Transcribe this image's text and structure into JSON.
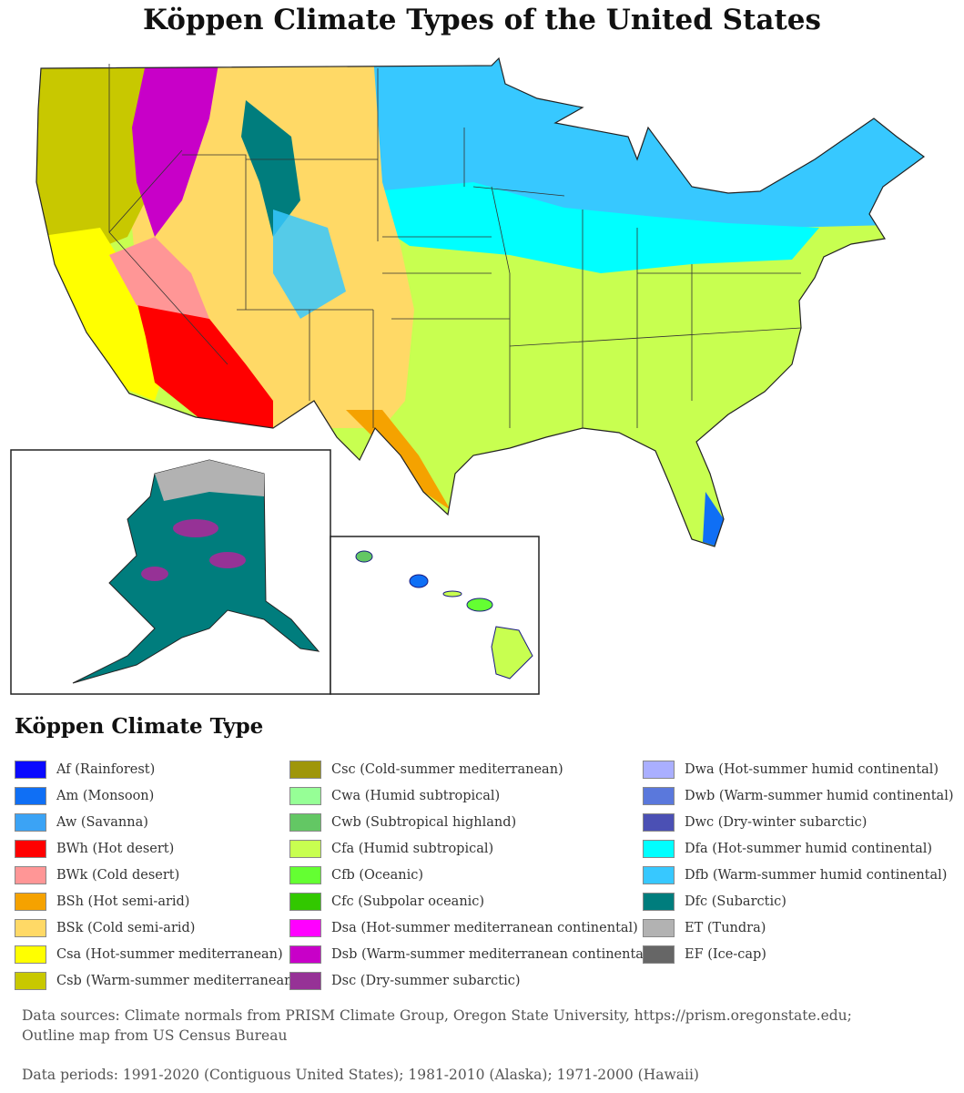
{
  "title": "Köppen Climate Types of the United States",
  "legend": {
    "title": "Köppen Climate Type",
    "columns": [
      [
        {
          "label": "Af (Rainforest)",
          "color": "#0a0aff"
        },
        {
          "label": "Am (Monsoon)",
          "color": "#0f6ff5"
        },
        {
          "label": "Aw (Savanna)",
          "color": "#3ba3f5"
        },
        {
          "label": "BWh (Hot desert)",
          "color": "#ff0000"
        },
        {
          "label": "BWk (Cold desert)",
          "color": "#ff9696"
        },
        {
          "label": "BSh (Hot semi-arid)",
          "color": "#f5a200"
        },
        {
          "label": "BSk (Cold semi-arid)",
          "color": "#ffd966"
        },
        {
          "label": "Csa (Hot-summer mediterranean)",
          "color": "#ffff00"
        },
        {
          "label": "Csb (Warm-summer mediterranean)",
          "color": "#c8c800"
        }
      ],
      [
        {
          "label": "Csc (Cold-summer mediterranean)",
          "color": "#9f960a"
        },
        {
          "label": "Cwa (Humid subtropical)",
          "color": "#96ff96"
        },
        {
          "label": "Cwb (Subtropical highland)",
          "color": "#63c764"
        },
        {
          "label": "Cfa (Humid subtropical)",
          "color": "#c8ff50"
        },
        {
          "label": "Cfb (Oceanic)",
          "color": "#64ff32"
        },
        {
          "label": "Cfc (Subpolar oceanic)",
          "color": "#32c800"
        },
        {
          "label": "Dsa (Hot-summer mediterranean continental)",
          "color": "#ff00ff"
        },
        {
          "label": "Dsb (Warm-summer mediterranean continental)",
          "color": "#c800c8"
        },
        {
          "label": "Dsc (Dry-summer subarctic)",
          "color": "#963296"
        }
      ],
      [
        {
          "label": "Dwa (Hot-summer humid continental)",
          "color": "#aaafff"
        },
        {
          "label": "Dwb (Warm-summer humid continental)",
          "color": "#5a78dc"
        },
        {
          "label": "Dwc (Dry-winter subarctic)",
          "color": "#4b50b4"
        },
        {
          "label": "Dfa (Hot-summer humid continental)",
          "color": "#00ffff"
        },
        {
          "label": "Dfb (Warm-summer humid continental)",
          "color": "#37c8ff"
        },
        {
          "label": "Dfc (Subarctic)",
          "color": "#007d7d"
        },
        {
          "label": "ET (Tundra)",
          "color": "#b2b2b2"
        },
        {
          "label": "EF (Ice-cap)",
          "color": "#666666"
        }
      ]
    ]
  },
  "sources": {
    "line1": "Data sources: Climate normals from PRISM Climate Group, Oregon State University, https://prism.oregonstate.edu;",
    "line2": "Outline map from US Census Bureau",
    "periods": "Data periods: 1991-2020 (Contiguous United States); 1981-2010 (Alaska); 1971-2000 (Hawaii)"
  }
}
